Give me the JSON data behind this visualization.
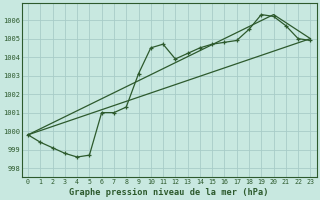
{
  "title": "Graphe pression niveau de la mer (hPa)",
  "x_values": [
    0,
    1,
    2,
    3,
    4,
    5,
    6,
    7,
    8,
    9,
    10,
    11,
    12,
    13,
    14,
    15,
    16,
    17,
    18,
    19,
    20,
    21,
    22,
    23
  ],
  "main_line": [
    999.8,
    999.4,
    999.1,
    998.8,
    998.6,
    998.7,
    1001.0,
    1001.0,
    1001.3,
    1003.1,
    1004.5,
    1004.7,
    1003.9,
    1004.2,
    1004.5,
    1004.7,
    1004.8,
    1004.9,
    1005.5,
    1006.3,
    1006.2,
    1005.7,
    1005.0,
    1004.9
  ],
  "straight_line1_x": [
    0,
    23
  ],
  "straight_line1_y": [
    999.8,
    1005.0
  ],
  "straight_line2_x": [
    0,
    20,
    23
  ],
  "straight_line2_y": [
    999.8,
    1006.3,
    1005.0
  ],
  "ylim": [
    997.5,
    1006.9
  ],
  "xlim": [
    -0.5,
    23.5
  ],
  "bg_color": "#c8e8e0",
  "grid_color": "#a8ccc8",
  "line_color": "#2d5a2d",
  "title_color": "#2d5a2d",
  "yticks": [
    998,
    999,
    1000,
    1001,
    1002,
    1003,
    1004,
    1005,
    1006
  ],
  "xticks": [
    0,
    1,
    2,
    3,
    4,
    5,
    6,
    7,
    8,
    9,
    10,
    11,
    12,
    13,
    14,
    15,
    16,
    17,
    18,
    19,
    20,
    21,
    22,
    23
  ]
}
